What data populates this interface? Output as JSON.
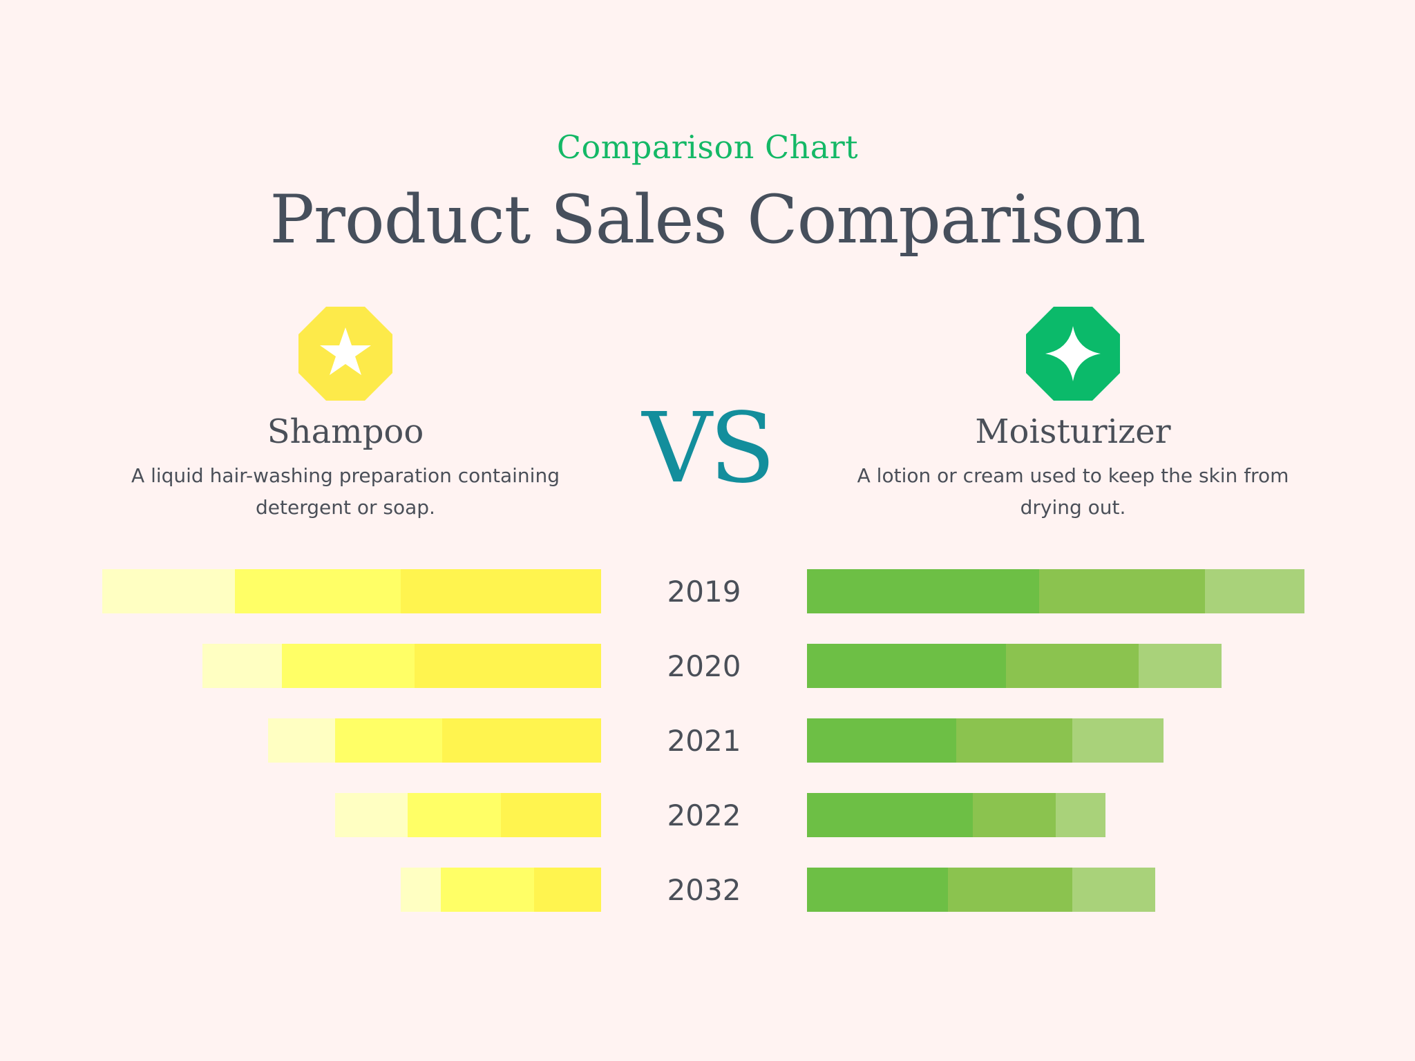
{
  "header": {
    "subtitle": "Comparison Chart",
    "title": "Product Sales Comparison"
  },
  "left_product": {
    "name": "Shampoo",
    "description": "A liquid hair-washing preparation containing detergent or soap.",
    "icon": "star-icon",
    "badge_color": "#fdea4a"
  },
  "right_product": {
    "name": "Moisturizer",
    "description": "A lotion or cream used to keep the skin from drying out.",
    "icon": "four-point-star-icon",
    "badge_color": "#0bba6a"
  },
  "vs_label": "VS",
  "chart_data": {
    "type": "bar",
    "orientation": "horizontal-diverging",
    "stacked": true,
    "categories": [
      "2019",
      "2020",
      "2021",
      "2022",
      "2032"
    ],
    "left": {
      "product": "Shampoo",
      "colors": [
        "#fff44f",
        "#ffff66",
        "#ffffc2"
      ],
      "segments": [
        [
          290,
          240,
          192
        ],
        [
          270,
          192,
          115
        ],
        [
          230,
          155,
          97
        ],
        [
          145,
          135,
          105
        ],
        [
          97,
          135,
          58
        ]
      ]
    },
    "right": {
      "product": "Moisturizer",
      "colors": [
        "#6dbf45",
        "#8bc34f",
        "#a9d27a"
      ],
      "segments": [
        [
          336,
          240,
          144
        ],
        [
          288,
          192,
          120
        ],
        [
          216,
          168,
          132
        ],
        [
          240,
          120,
          72
        ],
        [
          204,
          180,
          120
        ]
      ]
    }
  }
}
